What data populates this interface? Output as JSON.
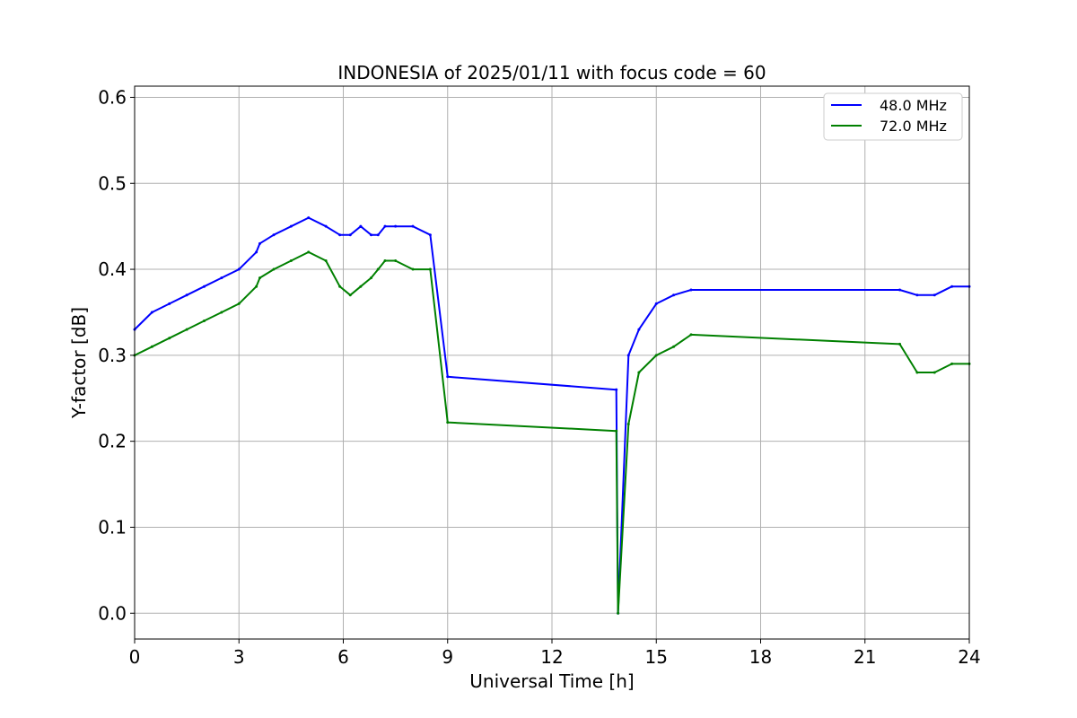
{
  "chart_data": {
    "type": "line",
    "title": "INDONESIA of 2025/01/11 with focus code = 60",
    "xlabel": "Universal Time [h]",
    "ylabel": "Y-factor [dB]",
    "xlim": [
      0,
      24
    ],
    "ylim": [
      -0.03,
      0.613
    ],
    "xticks": [
      0,
      3,
      6,
      9,
      12,
      15,
      18,
      21,
      24
    ],
    "yticks": [
      0.0,
      0.1,
      0.2,
      0.3,
      0.4,
      0.5,
      0.6
    ],
    "xtick_labels": [
      "0",
      "3",
      "6",
      "9",
      "12",
      "15",
      "18",
      "21",
      "24"
    ],
    "ytick_labels": [
      "0.0",
      "0.1",
      "0.2",
      "0.3",
      "0.4",
      "0.5",
      "0.6"
    ],
    "grid": true,
    "legend_position": "top-right",
    "series": [
      {
        "name": "48.0 MHz",
        "color": "#0000ff",
        "x": [
          0.0,
          0.5,
          1.0,
          1.5,
          2.0,
          2.5,
          3.0,
          3.5,
          3.6,
          4.0,
          4.5,
          5.0,
          5.5,
          5.9,
          6.2,
          6.5,
          6.8,
          7.0,
          7.2,
          7.5,
          8.0,
          8.5,
          9.0,
          13.85,
          13.9,
          14.2,
          14.5,
          15.0,
          15.5,
          16.0,
          22.0,
          22.5,
          23.0,
          23.5,
          24.0
        ],
        "values": [
          0.33,
          0.35,
          0.36,
          0.37,
          0.38,
          0.39,
          0.4,
          0.42,
          0.43,
          0.44,
          0.45,
          0.46,
          0.45,
          0.44,
          0.44,
          0.45,
          0.44,
          0.44,
          0.45,
          0.45,
          0.45,
          0.44,
          0.275,
          0.26,
          0.0,
          0.3,
          0.33,
          0.36,
          0.37,
          0.376,
          0.376,
          0.37,
          0.37,
          0.38,
          0.38
        ]
      },
      {
        "name": "72.0 MHz",
        "color": "#008000",
        "x": [
          0.0,
          0.5,
          1.0,
          1.5,
          2.0,
          2.5,
          3.0,
          3.5,
          3.6,
          4.0,
          4.5,
          5.0,
          5.5,
          5.9,
          6.2,
          6.5,
          6.8,
          7.0,
          7.2,
          7.5,
          8.0,
          8.5,
          9.0,
          13.85,
          13.9,
          14.2,
          14.5,
          15.0,
          15.5,
          16.0,
          22.0,
          22.5,
          23.0,
          23.5,
          24.0
        ],
        "values": [
          0.3,
          0.31,
          0.32,
          0.33,
          0.34,
          0.35,
          0.36,
          0.38,
          0.39,
          0.4,
          0.41,
          0.42,
          0.41,
          0.38,
          0.37,
          0.38,
          0.39,
          0.4,
          0.41,
          0.41,
          0.4,
          0.4,
          0.222,
          0.212,
          0.0,
          0.22,
          0.28,
          0.3,
          0.31,
          0.324,
          0.313,
          0.28,
          0.28,
          0.29,
          0.29
        ]
      }
    ]
  }
}
